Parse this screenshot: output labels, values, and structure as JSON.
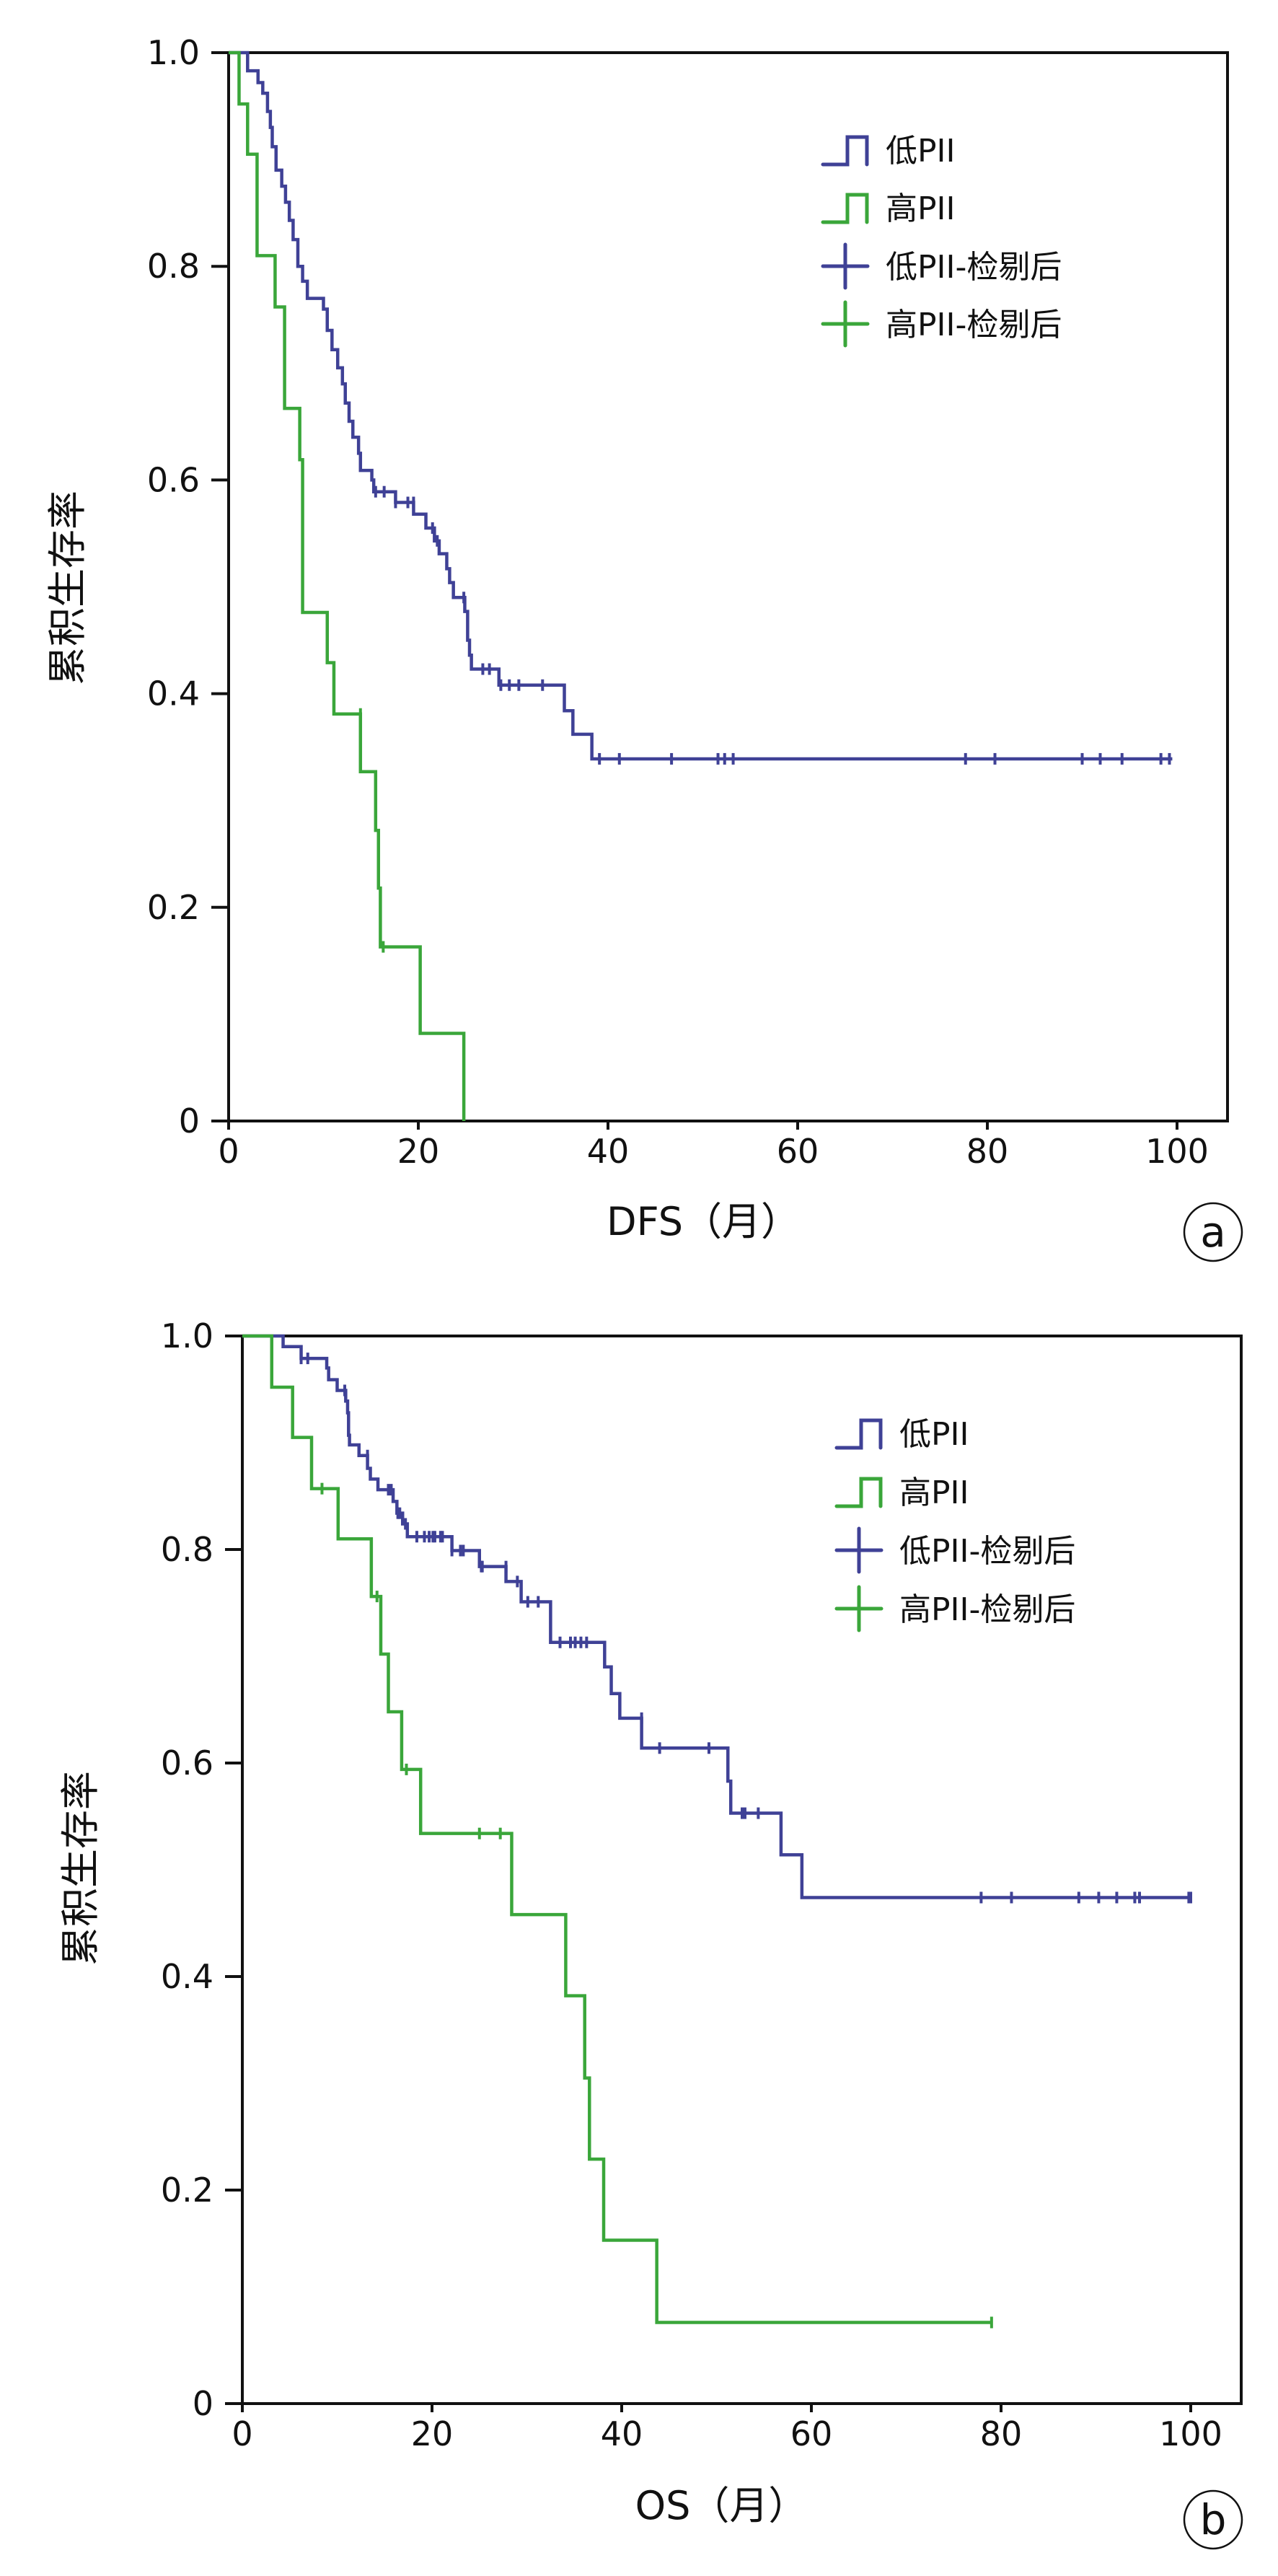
{
  "chart_data": [
    {
      "type": "line",
      "subtype": "kaplan-meier",
      "panel_label": "a",
      "xlabel": "DFS（月）",
      "ylabel": "累积生存率",
      "xlim": [
        0,
        100
      ],
      "ylim": [
        0,
        1.0
      ],
      "xticks": [
        0,
        20,
        40,
        60,
        80,
        100
      ],
      "yticks": [
        0,
        0.2,
        0.4,
        0.6,
        0.8,
        1.0
      ],
      "ytick_labels": [
        "0",
        "0.2",
        "0.4",
        "0.6",
        "0.8",
        "1.0"
      ],
      "xtick_labels": [
        "0",
        "20",
        "40",
        "60",
        "80",
        "100"
      ],
      "grid": false,
      "legend_position": "top-right",
      "legend": [
        {
          "label": "低PII",
          "kind": "step",
          "color": "#3f4196"
        },
        {
          "label": "高PII",
          "kind": "step",
          "color": "#3aa63a"
        },
        {
          "label": "低PII-检剔后",
          "kind": "censor",
          "color": "#3f4196"
        },
        {
          "label": "高PII-检剔后",
          "kind": "censor",
          "color": "#3aa63a"
        }
      ],
      "series": [
        {
          "name": "低PII",
          "color": "#3f4196",
          "steps": [
            [
              0,
              1.0
            ],
            [
              2.0,
              0.983
            ],
            [
              3.1,
              0.972
            ],
            [
              3.6,
              0.962
            ],
            [
              4.1,
              0.945
            ],
            [
              4.4,
              0.93
            ],
            [
              4.6,
              0.912
            ],
            [
              5.0,
              0.89
            ],
            [
              5.6,
              0.875
            ],
            [
              6.0,
              0.86
            ],
            [
              6.4,
              0.843
            ],
            [
              6.8,
              0.825
            ],
            [
              7.3,
              0.8
            ],
            [
              7.8,
              0.786
            ],
            [
              8.3,
              0.77
            ],
            [
              10.0,
              0.76
            ],
            [
              10.4,
              0.74
            ],
            [
              10.9,
              0.722
            ],
            [
              11.5,
              0.705
            ],
            [
              12.0,
              0.69
            ],
            [
              12.3,
              0.672
            ],
            [
              12.7,
              0.655
            ],
            [
              13.1,
              0.64
            ],
            [
              13.7,
              0.625
            ],
            [
              13.9,
              0.609
            ],
            [
              15.1,
              0.6
            ],
            [
              15.3,
              0.589
            ],
            [
              17.6,
              0.579
            ],
            [
              19.5,
              0.568
            ],
            [
              20.8,
              0.555
            ],
            [
              21.7,
              0.543
            ],
            [
              22.2,
              0.531
            ],
            [
              23.0,
              0.517
            ],
            [
              23.3,
              0.504
            ],
            [
              23.7,
              0.49
            ],
            [
              24.9,
              0.477
            ],
            [
              25.2,
              0.45
            ],
            [
              25.4,
              0.436
            ],
            [
              25.6,
              0.423
            ],
            [
              28.5,
              0.408
            ],
            [
              35.4,
              0.384
            ],
            [
              36.3,
              0.362
            ],
            [
              38.3,
              0.339
            ]
          ],
          "end": 99.5,
          "censored": [
            [
              15.5,
              0.589
            ],
            [
              16.4,
              0.589
            ],
            [
              17.6,
              0.579
            ],
            [
              18.9,
              0.579
            ],
            [
              19.5,
              0.579
            ],
            [
              21.5,
              0.555
            ],
            [
              22.0,
              0.543
            ],
            [
              24.8,
              0.49
            ],
            [
              26.8,
              0.423
            ],
            [
              27.5,
              0.423
            ],
            [
              28.7,
              0.408
            ],
            [
              29.6,
              0.408
            ],
            [
              30.6,
              0.408
            ],
            [
              33.1,
              0.408
            ],
            [
              39.1,
              0.339
            ],
            [
              41.2,
              0.339
            ],
            [
              46.7,
              0.339
            ],
            [
              51.6,
              0.339
            ],
            [
              52.3,
              0.339
            ],
            [
              53.2,
              0.339
            ],
            [
              77.7,
              0.339
            ],
            [
              80.8,
              0.339
            ],
            [
              90.0,
              0.339
            ],
            [
              91.9,
              0.339
            ],
            [
              94.2,
              0.339
            ],
            [
              98.3,
              0.339
            ],
            [
              99.2,
              0.339
            ]
          ]
        },
        {
          "name": "高PII",
          "color": "#3aa63a",
          "steps": [
            [
              0,
              1.0
            ],
            [
              1.1,
              0.952
            ],
            [
              2.0,
              0.905
            ],
            [
              3.0,
              0.81
            ],
            [
              4.9,
              0.762
            ],
            [
              5.9,
              0.667
            ],
            [
              7.5,
              0.619
            ],
            [
              7.8,
              0.476
            ],
            [
              10.4,
              0.429
            ],
            [
              11.1,
              0.381
            ],
            [
              13.9,
              0.327
            ],
            [
              15.5,
              0.272
            ],
            [
              15.8,
              0.218
            ],
            [
              16.0,
              0.163
            ],
            [
              20.2,
              0.082
            ],
            [
              24.8,
              0.0
            ]
          ],
          "end": 24.8,
          "censored": [
            [
              13.9,
              0.381
            ],
            [
              16.3,
              0.163
            ]
          ]
        }
      ]
    },
    {
      "type": "line",
      "subtype": "kaplan-meier",
      "panel_label": "b",
      "xlabel": "OS（月）",
      "ylabel": "累积生存率",
      "xlim": [
        0,
        100
      ],
      "ylim": [
        0,
        1.0
      ],
      "xticks": [
        0,
        20,
        40,
        60,
        80,
        100
      ],
      "yticks": [
        0,
        0.2,
        0.4,
        0.6,
        0.8,
        1.0
      ],
      "ytick_labels": [
        "0",
        "0.2",
        "0.4",
        "0.6",
        "0.8",
        "1.0"
      ],
      "xtick_labels": [
        "0",
        "20",
        "40",
        "60",
        "80",
        "100"
      ],
      "grid": false,
      "legend_position": "top-right",
      "legend": [
        {
          "label": "低PII",
          "kind": "step",
          "color": "#3f4196"
        },
        {
          "label": "高PII",
          "kind": "step",
          "color": "#3aa63a"
        },
        {
          "label": "低PII-检剔后",
          "kind": "censor",
          "color": "#3f4196"
        },
        {
          "label": "高PII-检剔后",
          "kind": "censor",
          "color": "#3aa63a"
        }
      ],
      "series": [
        {
          "name": "低PII",
          "color": "#3f4196",
          "steps": [
            [
              0,
              1.0
            ],
            [
              4.3,
              0.99
            ],
            [
              6.2,
              0.979
            ],
            [
              8.9,
              0.97
            ],
            [
              9.1,
              0.959
            ],
            [
              10.0,
              0.949
            ],
            [
              10.9,
              0.939
            ],
            [
              11.1,
              0.928
            ],
            [
              11.2,
              0.907
            ],
            [
              11.3,
              0.898
            ],
            [
              12.3,
              0.888
            ],
            [
              13.2,
              0.876
            ],
            [
              13.5,
              0.866
            ],
            [
              14.3,
              0.856
            ],
            [
              15.9,
              0.845
            ],
            [
              16.3,
              0.834
            ],
            [
              16.9,
              0.824
            ],
            [
              17.4,
              0.812
            ],
            [
              22.1,
              0.799
            ],
            [
              25.0,
              0.784
            ],
            [
              27.8,
              0.77
            ],
            [
              29.4,
              0.751
            ],
            [
              32.5,
              0.713
            ],
            [
              38.2,
              0.69
            ],
            [
              38.9,
              0.665
            ],
            [
              39.8,
              0.642
            ],
            [
              42.1,
              0.614
            ],
            [
              51.2,
              0.583
            ],
            [
              51.5,
              0.553
            ],
            [
              56.8,
              0.514
            ],
            [
              59.0,
              0.474
            ]
          ],
          "end": 100,
          "censored": [
            [
              6.2,
              0.979
            ],
            [
              6.9,
              0.979
            ],
            [
              10.8,
              0.949
            ],
            [
              13.2,
              0.888
            ],
            [
              15.4,
              0.856
            ],
            [
              15.7,
              0.856
            ],
            [
              16.4,
              0.834
            ],
            [
              16.6,
              0.834
            ],
            [
              17.2,
              0.824
            ],
            [
              18.4,
              0.812
            ],
            [
              19.2,
              0.812
            ],
            [
              19.7,
              0.812
            ],
            [
              20.1,
              0.812
            ],
            [
              20.3,
              0.812
            ],
            [
              20.9,
              0.812
            ],
            [
              21.1,
              0.812
            ],
            [
              22.1,
              0.799
            ],
            [
              23.0,
              0.799
            ],
            [
              23.3,
              0.799
            ],
            [
              25.2,
              0.784
            ],
            [
              25.3,
              0.784
            ],
            [
              27.8,
              0.784
            ],
            [
              29.0,
              0.77
            ],
            [
              30.1,
              0.751
            ],
            [
              31.2,
              0.751
            ],
            [
              33.5,
              0.713
            ],
            [
              34.6,
              0.713
            ],
            [
              35.1,
              0.713
            ],
            [
              35.7,
              0.713
            ],
            [
              36.3,
              0.713
            ],
            [
              42.1,
              0.642
            ],
            [
              44.0,
              0.614
            ],
            [
              49.2,
              0.614
            ],
            [
              52.7,
              0.553
            ],
            [
              53.0,
              0.553
            ],
            [
              54.4,
              0.553
            ],
            [
              77.9,
              0.474
            ],
            [
              81.1,
              0.474
            ],
            [
              88.2,
              0.474
            ],
            [
              90.3,
              0.474
            ],
            [
              92.2,
              0.474
            ],
            [
              94.1,
              0.474
            ],
            [
              94.6,
              0.474
            ],
            [
              99.8,
              0.474
            ],
            [
              100,
              0.474
            ]
          ]
        },
        {
          "name": "高PII",
          "color": "#3aa63a",
          "steps": [
            [
              0,
              1.0
            ],
            [
              3.1,
              0.952
            ],
            [
              5.3,
              0.905
            ],
            [
              7.3,
              0.857
            ],
            [
              10.1,
              0.81
            ],
            [
              13.6,
              0.756
            ],
            [
              14.6,
              0.702
            ],
            [
              15.4,
              0.648
            ],
            [
              16.8,
              0.594
            ],
            [
              18.8,
              0.534
            ],
            [
              28.4,
              0.458
            ],
            [
              34.1,
              0.382
            ],
            [
              36.1,
              0.305
            ],
            [
              36.6,
              0.229
            ],
            [
              38.1,
              0.153
            ],
            [
              43.7,
              0.076
            ]
          ],
          "end": 79.0,
          "censored": [
            [
              8.4,
              0.857
            ],
            [
              14.2,
              0.756
            ],
            [
              17.3,
              0.594
            ],
            [
              25.0,
              0.534
            ],
            [
              27.2,
              0.534
            ],
            [
              79.0,
              0.076
            ]
          ]
        }
      ]
    }
  ]
}
